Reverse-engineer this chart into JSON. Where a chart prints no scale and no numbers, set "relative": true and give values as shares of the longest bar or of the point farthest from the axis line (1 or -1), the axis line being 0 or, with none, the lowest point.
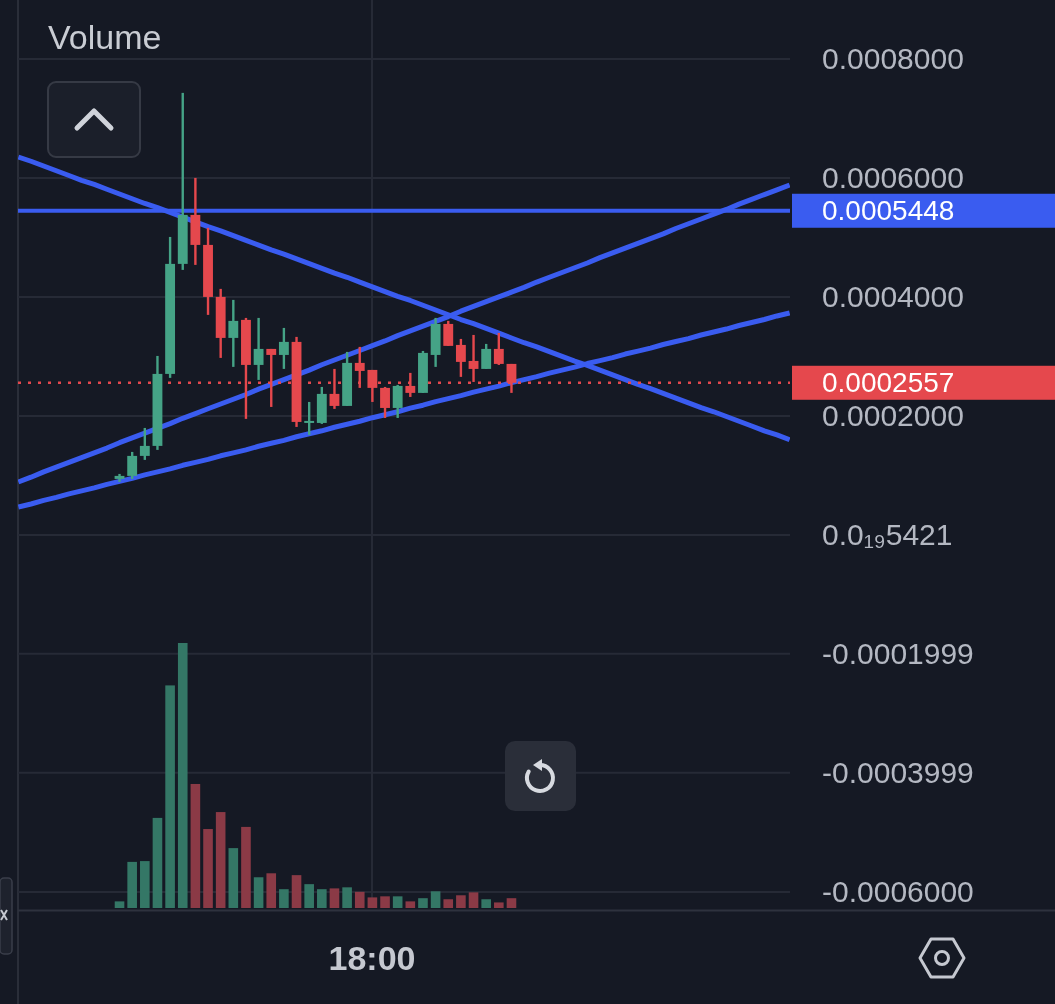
{
  "chart_data": [
    {
      "type": "candlestick",
      "categories": [
        null,
        null,
        null,
        null,
        null,
        null,
        null,
        null,
        null,
        null,
        null,
        null,
        null,
        null,
        null,
        null,
        null,
        null,
        null,
        null,
        null,
        null,
        null,
        null,
        null,
        null,
        null,
        null,
        null,
        null,
        null,
        null,
        null,
        null,
        null,
        null,
        null,
        null,
        null,
        null,
        null,
        null,
        null,
        null,
        null,
        null,
        null,
        null,
        null,
        null,
        null,
        null,
        null,
        null,
        null,
        null,
        null,
        null,
        null,
        null,
        null,
        null
      ],
      "ohlc": [
        null,
        null,
        null,
        null,
        null,
        null,
        null,
        null,
        [
          9.41e-05,
          0.0001025,
          8.91e-05,
          9.92e-05
        ],
        [
          9.92e-05,
          0.0001395,
          9.41e-05,
          0.0001328
        ],
        [
          0.0001328,
          0.0001798,
          0.0001261,
          0.0001496
        ],
        [
          0.0001496,
          0.0003008,
          0.0001429,
          0.0002706
        ],
        [
          0.0002706,
          0.0005008,
          0.0002639,
          0.0004555
        ],
        [
          0.0004555,
          0.0007429,
          0.0004454,
          0.0005378
        ],
        [
          0.0005378,
          0.0006,
          0.0004538,
          0.0004874
        ],
        [
          0.0004874,
          0.000516,
          0.0003698,
          0.0004
        ],
        [
          0.0004,
          0.0004135,
          0.0002975,
          0.0003311
        ],
        [
          0.0003311,
          0.000395,
          0.0002824,
          0.0003597
        ],
        [
          0.0003614,
          0.0003647,
          0.000195,
          0.0002857
        ],
        [
          0.0002857,
          0.0003647,
          0.0002605,
          0.0003126
        ],
        [
          0.0003126,
          0.0003126,
          0.0002151,
          0.0003025
        ],
        [
          0.0003025,
          0.0003479,
          0.000279,
          0.0003244
        ],
        [
          0.0003244,
          0.0003328,
          0.0001815,
          0.0001899
        ],
        [
          0.0001882,
          0.0002235,
          0.0001681,
          0.0001916
        ],
        [
          0.0001882,
          0.0002487,
          0.0001866,
          0.000237
        ],
        [
          0.000237,
          0.000279,
          0.0002118,
          0.0002168
        ],
        [
          0.0002168,
          0.0003076,
          0.0002168,
          0.0002891
        ],
        [
          0.0002891,
          0.000316,
          0.0002471,
          0.0002756
        ],
        [
          0.0002773,
          0.0002773,
          0.0002235,
          0.0002471
        ],
        [
          0.0002471,
          0.0002487,
          0.0001966,
          0.0002134
        ],
        [
          0.0002134,
          0.0002521,
          0.0001966,
          0.0002504
        ],
        [
          0.0002504,
          0.0002723,
          0.0002319,
          0.0002387
        ],
        [
          0.0002387,
          0.0003092,
          0.0002387,
          0.0003059
        ],
        [
          0.0003025,
          0.0003647,
          0.0002824,
          0.0003546
        ],
        [
          0.0003546,
          0.0003597,
          0.0003177,
          0.0003177
        ],
        [
          0.0003193,
          0.0003294,
          0.0002656,
          0.0002908
        ],
        [
          0.0002924,
          0.0003361,
          0.0002571,
          0.000279
        ],
        [
          0.000279,
          0.000321,
          0.000279,
          0.0003126
        ],
        [
          0.0003126,
          0.0003395,
          0.0002857,
          0.0002874
        ],
        [
          0.0002874,
          0.0002874,
          0.0002387,
          0.0002557
        ],
        null,
        null,
        null,
        null,
        null,
        null,
        null,
        null,
        null,
        null,
        null,
        null,
        null,
        null,
        null,
        null,
        null,
        null,
        null,
        null,
        null,
        null
      ],
      "colors": [
        null,
        null,
        null,
        null,
        null,
        null,
        null,
        null,
        "#45a386",
        "#45a386",
        "#45a386",
        "#45a386",
        "#45a386",
        "#45a386",
        "#e5484d",
        "#e5484d",
        "#e5484d",
        "#45a386",
        "#e5484d",
        "#45a386",
        "#e5484d",
        "#45a386",
        "#e5484d",
        "#45a386",
        "#45a386",
        "#e5484d",
        "#45a386",
        "#e5484d",
        "#e5484d",
        "#e5484d",
        "#45a386",
        "#e5484d",
        "#45a386",
        "#45a386",
        "#e5484d",
        "#e5484d",
        "#e5484d",
        "#45a386",
        "#e5484d",
        "#e5484d",
        null,
        null,
        null,
        null,
        null,
        null,
        null,
        null,
        null,
        null,
        null,
        null,
        null,
        null,
        null,
        null,
        null,
        null,
        null,
        null,
        null,
        null
      ],
      "series": [
        {
          "type": "line",
          "color": "#3a5cf0",
          "values": [
            0.000635,
            0.000628,
            0.00062,
            0.000612,
            0.000604,
            0.000596,
            0.000589,
            0.000581,
            0.000573,
            0.000565,
            0.000557,
            0.00055,
            0.000542,
            0.000534,
            null,
            0.000518,
            0.000511,
            0.000503,
            0.000495,
            0.000487,
            0.000479,
            0.000472,
            0.000464,
            0.000456,
            0.000448,
            0.00044,
            0.000433,
            0.000425,
            0.000417,
            0.000409,
            0.000401,
            0.000394,
            0.000386,
            0.000378,
            0.00037,
            0.000362,
            0.000355,
            0.000347,
            0.000339,
            0.000331,
            0.000323,
            0.000316,
            0.000308,
            0.0003,
            0.000292,
            0.000285,
            0.000277,
            0.000269,
            0.000261,
            0.000253,
            0.000246,
            0.000238,
            0.00023,
            0.000222,
            0.000214,
            0.000207,
            0.000199,
            0.000191,
            0.000183,
            0.000175,
            0.000168,
            0.00016
          ]
        },
        {
          "type": "line",
          "color": "#3a5cf0",
          "values": [
            8.9e-05,
            9.7e-05,
            0.000106,
            0.000114,
            0.000122,
            0.00013,
            0.000138,
            0.000146,
            0.000155,
            0.000163,
            0.000171,
            null,
            0.000187,
            0.000196,
            0.000204,
            0.000212,
            0.00022,
            0.000228,
            0.000236,
            0.000245,
            0.000253,
            0.000261,
            null,
            0.000277,
            0.000286,
            0.000294,
            0.000302,
            0.00031,
            0.000318,
            0.000326,
            0.000335,
            0.000343,
            0.000351,
            0.000359,
            0.000367,
            0.000376,
            0.000384,
            0.000392,
            0.0004,
            0.000408,
            0.000416,
            0.000425,
            0.000433,
            0.000441,
            0.000449,
            0.000457,
            0.000466,
            0.000474,
            0.000482,
            0.00049,
            0.000498,
            0.000506,
            0.000515,
            0.000523,
            0.000531,
            0.000539,
            0.000547,
            0.000556,
            0.000564,
            0.000572,
            0.00058,
            0.000588
          ]
        },
        {
          "type": "line",
          "color": "#3a5cf0",
          "values": [
            4.7e-05,
            5.2e-05,
            5.8e-05,
            6.3e-05,
            6.9e-05,
            7.4e-05,
            7.9e-05,
            8.5e-05,
            9e-05,
            9.5e-05,
            0.000101,
            0.000106,
            0.000111,
            0.000117,
            0.000122,
            0.000127,
            0.000133,
            0.000138,
            0.000143,
            0.000149,
            0.000154,
            0.000159,
            0.000165,
            0.00017,
            0.000175,
            0.000181,
            0.000186,
            0.000191,
            0.000197,
            0.000202,
            0.000207,
            0.000213,
            0.000218,
            0.000224,
            0.000229,
            0.000234,
            0.00024,
            0.000245,
            0.00025,
            0.000256,
            0.000261,
            0.000266,
            0.000272,
            0.000277,
            0.000282,
            0.000288,
            0.000293,
            0.000298,
            0.000304,
            0.000309,
            0.000314,
            0.00032,
            0.000325,
            0.00033,
            0.000336,
            0.000341,
            0.000346,
            0.000352,
            0.000357,
            0.000362,
            0.000368,
            0.000373
          ]
        }
      ],
      "ref_lines": [
        {
          "axis": "y",
          "value": 0.0005448,
          "label": "0.0005448",
          "color": "#3a5cf0"
        },
        {
          "axis": "y",
          "value": 0.0002557,
          "label": "0.0002557",
          "color": "#e5484d",
          "line_style": "dotted"
        }
      ],
      "annotations": [
        "18:00"
      ],
      "ylim": [
        -0.000627,
        0.000899
      ],
      "yticks": [
        {
          "value": 0.0008,
          "label": "0.0008000"
        },
        {
          "value": 0.0006,
          "label": "0.0006000"
        },
        {
          "value": 0.0004,
          "label": "0.0004000"
        },
        {
          "value": 0.0002,
          "label": "0.0002000"
        },
        {
          "value": 5.421e-20,
          "label": "0.0₁₉5421"
        },
        {
          "value": -0.0001999,
          "label": "-0.0001999"
        },
        {
          "value": -0.0003999,
          "label": "-0.0003999"
        },
        {
          "value": -0.0006,
          "label": "-0.0006000"
        }
      ],
      "grid": true
    },
    {
      "type": "bar",
      "title": "Volume",
      "relative": true,
      "categories": [
        null,
        null,
        null,
        null,
        null,
        null,
        null,
        null,
        null,
        null,
        null,
        null,
        null,
        null,
        null,
        null,
        null,
        null,
        null,
        null,
        null,
        null,
        null,
        null,
        null,
        null,
        null,
        null,
        null,
        null,
        null,
        null,
        null,
        null,
        null,
        null,
        null,
        null,
        null,
        null,
        null,
        null,
        null,
        null,
        null,
        null,
        null,
        null,
        null,
        null,
        null,
        null,
        null,
        null,
        null,
        null,
        null,
        null,
        null,
        null,
        null,
        null
      ],
      "values": [
        null,
        null,
        null,
        null,
        null,
        null,
        null,
        null,
        0.025,
        0.174,
        0.177,
        0.34,
        0.84,
        1,
        0.468,
        0.298,
        0.362,
        0.226,
        0.306,
        0.116,
        0.131,
        0.071,
        0.124,
        0.09,
        0.071,
        0.074,
        0.078,
        0.061,
        0.04,
        0.044,
        0.044,
        0.025,
        0.037,
        0.063,
        0.033,
        0.048,
        0.059,
        0.033,
        0.021,
        0.037,
        null,
        null,
        null,
        null,
        null,
        null,
        null,
        null,
        null,
        null,
        null,
        null,
        null,
        null,
        null,
        null,
        null,
        null,
        null,
        null,
        null,
        null
      ],
      "colors": [
        null,
        null,
        null,
        null,
        null,
        null,
        null,
        null,
        "#347766",
        "#347766",
        "#347766",
        "#347766",
        "#347766",
        "#347766",
        "#8b3a46",
        "#8b3a46",
        "#8b3a46",
        "#347766",
        "#8b3a46",
        "#347766",
        "#8b3a46",
        "#347766",
        "#8b3a46",
        "#347766",
        "#347766",
        "#8b3a46",
        "#347766",
        "#8b3a46",
        "#8b3a46",
        "#8b3a46",
        "#347766",
        "#8b3a46",
        "#347766",
        "#347766",
        "#8b3a46",
        "#8b3a46",
        "#8b3a46",
        "#347766",
        "#8b3a46",
        "#8b3a46",
        null,
        null,
        null,
        null,
        null,
        null,
        null,
        null,
        null,
        null,
        null,
        null,
        null,
        null,
        null,
        null,
        null,
        null,
        null,
        null,
        null,
        null
      ]
    }
  ]
}
